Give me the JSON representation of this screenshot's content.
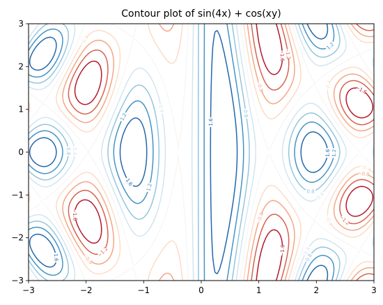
{
  "chart_data": {
    "type": "contour",
    "title": "Contour plot of sin(4x) + cos(xy)",
    "function": "sin(4x) + cos(xy)",
    "xlim": [
      -3,
      3
    ],
    "ylim": [
      -3,
      3
    ],
    "xticks": [
      -3,
      -2,
      -1,
      0,
      1,
      2,
      3
    ],
    "yticks": [
      -3,
      -2,
      -1,
      0,
      1,
      2,
      3
    ],
    "xtick_labels": [
      "−3",
      "−2",
      "−1",
      "0",
      "1",
      "2",
      "3"
    ],
    "ytick_labels": [
      "−3",
      "−2",
      "−1",
      "0",
      "1",
      "2",
      "3"
    ],
    "levels": [
      -1.6,
      -1.2,
      -0.8,
      -0.4,
      0.0,
      0.4,
      0.8,
      1.2,
      1.6
    ],
    "level_labels": [
      "−1.6",
      "−1.2",
      "−0.8",
      "−0.4",
      "0.0",
      "0.4",
      "0.8",
      "1.2",
      "1.6"
    ],
    "colormap": "RdBu",
    "level_colors": [
      "#b2182b",
      "#d6604d",
      "#f4a582",
      "#fddbc7",
      "#f7f7f7",
      "#d1e5f0",
      "#92c5de",
      "#4393c3",
      "#2166ac"
    ],
    "grid": false,
    "xlabel": "",
    "ylabel": ""
  }
}
